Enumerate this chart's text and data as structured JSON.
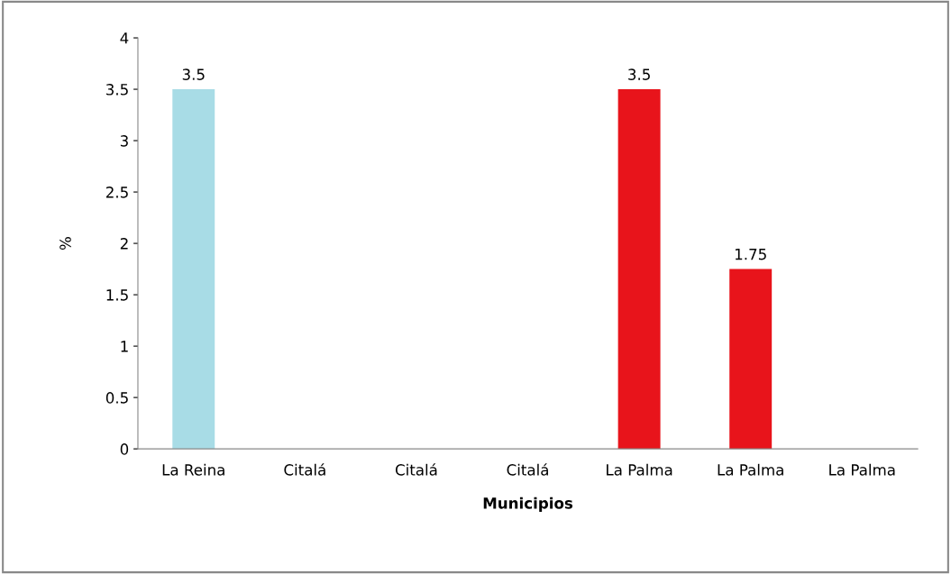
{
  "chart_data": {
    "type": "bar",
    "xlabel": "Municipios",
    "ylabel": "%",
    "categories": [
      "La Reina",
      "Citalá",
      "Citalá",
      "Citalá",
      "La Palma",
      "La Palma",
      "La Palma"
    ],
    "values": [
      3.5,
      0,
      0,
      0,
      3.5,
      1.75,
      0
    ],
    "colors": [
      "#a8dce6",
      "#e8141b",
      "#e8141b",
      "#e8141b",
      "#e8141b",
      "#e8141b",
      "#e8141b"
    ],
    "value_labels": [
      "3.5",
      null,
      null,
      null,
      "3.5",
      "1.75",
      null
    ],
    "ylim": [
      0,
      4
    ],
    "yticks": [
      0,
      0.5,
      1,
      1.5,
      2,
      2.5,
      3,
      3.5,
      4
    ],
    "grid": false,
    "legend": false
  }
}
